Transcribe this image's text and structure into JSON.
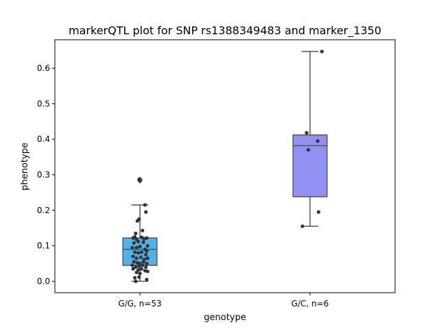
{
  "chart_data": {
    "type": "box",
    "title": "markerQTL plot for SNP rs1388349483 and marker_1350",
    "xlabel": "genotype",
    "ylabel": "phenotype",
    "ylim": [
      -0.032,
      0.68
    ],
    "yticks": [
      0.0,
      0.1,
      0.2,
      0.3,
      0.4,
      0.5,
      0.6
    ],
    "ytick_labels": [
      "0.0",
      "0.1",
      "0.2",
      "0.3",
      "0.4",
      "0.5",
      "0.6"
    ],
    "grid": false,
    "categories": [
      "G/G, n=53",
      "G/C, n=6"
    ],
    "boxes": [
      {
        "category": "G/G, n=53",
        "color": "#52b1e9",
        "whisker_low": 0.0,
        "q1": 0.045,
        "median": 0.09,
        "q3": 0.122,
        "whisker_high": 0.215,
        "outliers": [
          0.283,
          0.287
        ],
        "points": [
          [
            -0.4,
            0.122
          ],
          [
            -0.3,
            0.125
          ],
          [
            -0.2,
            0.118
          ],
          [
            0.1,
            0.124
          ],
          [
            0.25,
            0.12
          ],
          [
            0.4,
            0.122
          ],
          [
            -0.15,
            0.17
          ],
          [
            -0.05,
            0.175
          ],
          [
            0.15,
            0.143
          ],
          [
            -0.25,
            0.135
          ],
          [
            0.35,
            0.195
          ],
          [
            0.3,
            0.215
          ],
          [
            -0.35,
            0.108
          ],
          [
            -0.1,
            0.112
          ],
          [
            0.2,
            0.11
          ],
          [
            0.45,
            0.1
          ],
          [
            -0.45,
            0.095
          ],
          [
            -0.2,
            0.095
          ],
          [
            0.0,
            0.098
          ],
          [
            0.3,
            0.09
          ],
          [
            0.4,
            0.085
          ],
          [
            -0.3,
            0.082
          ],
          [
            -0.1,
            0.08
          ],
          [
            0.1,
            0.082
          ],
          [
            0.35,
            0.075
          ],
          [
            -0.4,
            0.07
          ],
          [
            -0.2,
            0.065
          ],
          [
            0.05,
            0.068
          ],
          [
            0.25,
            0.062
          ],
          [
            0.45,
            0.065
          ],
          [
            -0.35,
            0.055
          ],
          [
            -0.15,
            0.052
          ],
          [
            0.0,
            0.05
          ],
          [
            0.2,
            0.055
          ],
          [
            0.4,
            0.05
          ],
          [
            -0.45,
            0.045
          ],
          [
            -0.25,
            0.04
          ],
          [
            -0.05,
            0.042
          ],
          [
            0.15,
            0.045
          ],
          [
            0.35,
            0.04
          ],
          [
            -0.4,
            0.035
          ],
          [
            -0.1,
            0.032
          ],
          [
            0.1,
            0.035
          ],
          [
            0.3,
            0.03
          ],
          [
            -0.2,
            0.025
          ],
          [
            0.0,
            0.022
          ],
          [
            0.45,
            0.028
          ],
          [
            -0.3,
            0.01
          ],
          [
            -0.05,
            0.012
          ],
          [
            0.4,
            0.005
          ],
          [
            -0.25,
            0.0
          ],
          [
            0.0,
            0.283
          ],
          [
            -0.05,
            0.287
          ]
        ]
      },
      {
        "category": "G/C, n=6",
        "color": "#9191f4",
        "whisker_low": 0.155,
        "q1": 0.238,
        "median": 0.382,
        "q3": 0.412,
        "whisker_high": 0.647,
        "outliers": [],
        "points": [
          [
            -0.45,
            0.155
          ],
          [
            0.5,
            0.195
          ],
          [
            -0.1,
            0.37
          ],
          [
            0.45,
            0.395
          ],
          [
            -0.2,
            0.418
          ],
          [
            0.7,
            0.647
          ]
        ]
      }
    ]
  }
}
